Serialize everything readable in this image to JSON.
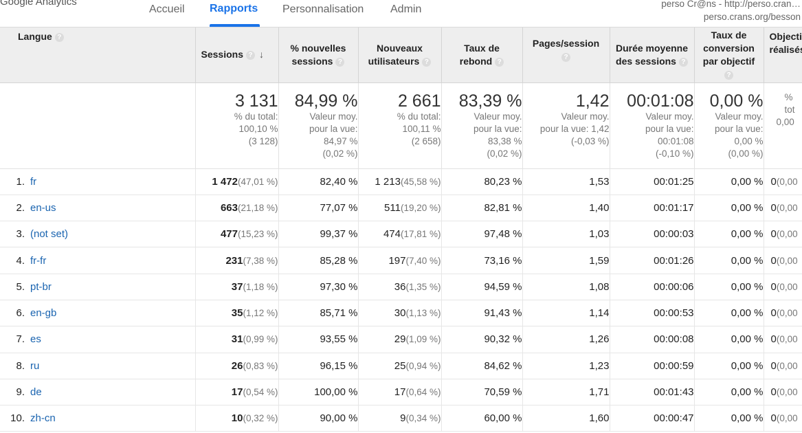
{
  "app": {
    "logo_text": "Google Analytics"
  },
  "nav": {
    "tabs": [
      {
        "label": "Accueil",
        "active": false
      },
      {
        "label": "Rapports",
        "active": true
      },
      {
        "label": "Personnalisation",
        "active": false
      },
      {
        "label": "Admin",
        "active": false
      }
    ],
    "accent_color": "#1a73e8"
  },
  "account": {
    "line1": "perso Cr@ns - http://perso.cran…",
    "line2": "perso.crans.org/besson"
  },
  "table": {
    "columns": [
      {
        "label": "Langue",
        "help_icon": "help-icon"
      },
      {
        "label": "Sessions",
        "help_icon": "help-icon",
        "sort": "descending"
      },
      {
        "label": "% nouvelles sessions",
        "help_icon": "help-icon"
      },
      {
        "label": "Nouveaux utilisateurs",
        "help_icon": "help-icon"
      },
      {
        "label": "Taux de rebond",
        "help_icon": "help-icon"
      },
      {
        "label": "Pages/session",
        "help_icon": "help-icon"
      },
      {
        "label": "Durée moyenne des sessions",
        "help_icon": "help-icon"
      },
      {
        "label": "Taux de conversion par objectif",
        "help_icon": "help-icon"
      },
      {
        "label": "Objectifs réalisés",
        "help_icon": "help-icon"
      }
    ],
    "totals": [
      {
        "value": "3 131",
        "sub": [
          "% du total:",
          "100,10 %",
          "(3 128)"
        ]
      },
      {
        "value": "84,99 %",
        "sub": [
          "Valeur moy.",
          "pour la vue:",
          "84,97 %",
          "(0,02 %)"
        ]
      },
      {
        "value": "2 661",
        "sub": [
          "% du total:",
          "100,11 %",
          "(2 658)"
        ]
      },
      {
        "value": "83,39 %",
        "sub": [
          "Valeur moy.",
          "pour la vue:",
          "83,38 %",
          "(0,02 %)"
        ]
      },
      {
        "value": "1,42",
        "sub": [
          "Valeur moy.",
          "pour la vue: 1,42",
          "(-0,03 %)"
        ]
      },
      {
        "value": "00:01:08",
        "sub": [
          "Valeur moy.",
          "pour la vue:",
          "00:01:08",
          "(-0,10 %)"
        ]
      },
      {
        "value": "0,00 %",
        "sub": [
          "Valeur moy.",
          "pour la vue:",
          "0,00 %",
          "(0,00 %)"
        ]
      },
      {
        "value": "",
        "sub": [
          "%",
          "tot",
          "0,00"
        ]
      }
    ],
    "rows": [
      {
        "index": "1.",
        "lang": "fr",
        "sessions": "1 472",
        "sessions_pct": "(47,01 %)",
        "new_pct": "82,40 %",
        "new_users": "1 213",
        "new_users_pct": "(45,58 %)",
        "bounce": "80,23 %",
        "pages": "1,53",
        "duration": "00:01:25",
        "conv": "0,00 %",
        "goals": "0",
        "goals_pct": "(0,00"
      },
      {
        "index": "2.",
        "lang": "en-us",
        "sessions": "663",
        "sessions_pct": "(21,18 %)",
        "new_pct": "77,07 %",
        "new_users": "511",
        "new_users_pct": "(19,20 %)",
        "bounce": "82,81 %",
        "pages": "1,40",
        "duration": "00:01:17",
        "conv": "0,00 %",
        "goals": "0",
        "goals_pct": "(0,00"
      },
      {
        "index": "3.",
        "lang": "(not set)",
        "sessions": "477",
        "sessions_pct": "(15,23 %)",
        "new_pct": "99,37 %",
        "new_users": "474",
        "new_users_pct": "(17,81 %)",
        "bounce": "97,48 %",
        "pages": "1,03",
        "duration": "00:00:03",
        "conv": "0,00 %",
        "goals": "0",
        "goals_pct": "(0,00"
      },
      {
        "index": "4.",
        "lang": "fr-fr",
        "sessions": "231",
        "sessions_pct": "(7,38 %)",
        "new_pct": "85,28 %",
        "new_users": "197",
        "new_users_pct": "(7,40 %)",
        "bounce": "73,16 %",
        "pages": "1,59",
        "duration": "00:01:26",
        "conv": "0,00 %",
        "goals": "0",
        "goals_pct": "(0,00"
      },
      {
        "index": "5.",
        "lang": "pt-br",
        "sessions": "37",
        "sessions_pct": "(1,18 %)",
        "new_pct": "97,30 %",
        "new_users": "36",
        "new_users_pct": "(1,35 %)",
        "bounce": "94,59 %",
        "pages": "1,08",
        "duration": "00:00:06",
        "conv": "0,00 %",
        "goals": "0",
        "goals_pct": "(0,00"
      },
      {
        "index": "6.",
        "lang": "en-gb",
        "sessions": "35",
        "sessions_pct": "(1,12 %)",
        "new_pct": "85,71 %",
        "new_users": "30",
        "new_users_pct": "(1,13 %)",
        "bounce": "91,43 %",
        "pages": "1,14",
        "duration": "00:00:53",
        "conv": "0,00 %",
        "goals": "0",
        "goals_pct": "(0,00"
      },
      {
        "index": "7.",
        "lang": "es",
        "sessions": "31",
        "sessions_pct": "(0,99 %)",
        "new_pct": "93,55 %",
        "new_users": "29",
        "new_users_pct": "(1,09 %)",
        "bounce": "90,32 %",
        "pages": "1,26",
        "duration": "00:00:08",
        "conv": "0,00 %",
        "goals": "0",
        "goals_pct": "(0,00"
      },
      {
        "index": "8.",
        "lang": "ru",
        "sessions": "26",
        "sessions_pct": "(0,83 %)",
        "new_pct": "96,15 %",
        "new_users": "25",
        "new_users_pct": "(0,94 %)",
        "bounce": "84,62 %",
        "pages": "1,23",
        "duration": "00:00:59",
        "conv": "0,00 %",
        "goals": "0",
        "goals_pct": "(0,00"
      },
      {
        "index": "9.",
        "lang": "de",
        "sessions": "17",
        "sessions_pct": "(0,54 %)",
        "new_pct": "100,00 %",
        "new_users": "17",
        "new_users_pct": "(0,64 %)",
        "bounce": "70,59 %",
        "pages": "1,71",
        "duration": "00:01:43",
        "conv": "0,00 %",
        "goals": "0",
        "goals_pct": "(0,00"
      },
      {
        "index": "10.",
        "lang": "zh-cn",
        "sessions": "10",
        "sessions_pct": "(0,32 %)",
        "new_pct": "90,00 %",
        "new_users": "9",
        "new_users_pct": "(0,34 %)",
        "bounce": "60,00 %",
        "pages": "1,60",
        "duration": "00:00:47",
        "conv": "0,00 %",
        "goals": "0",
        "goals_pct": "(0,00"
      }
    ]
  }
}
